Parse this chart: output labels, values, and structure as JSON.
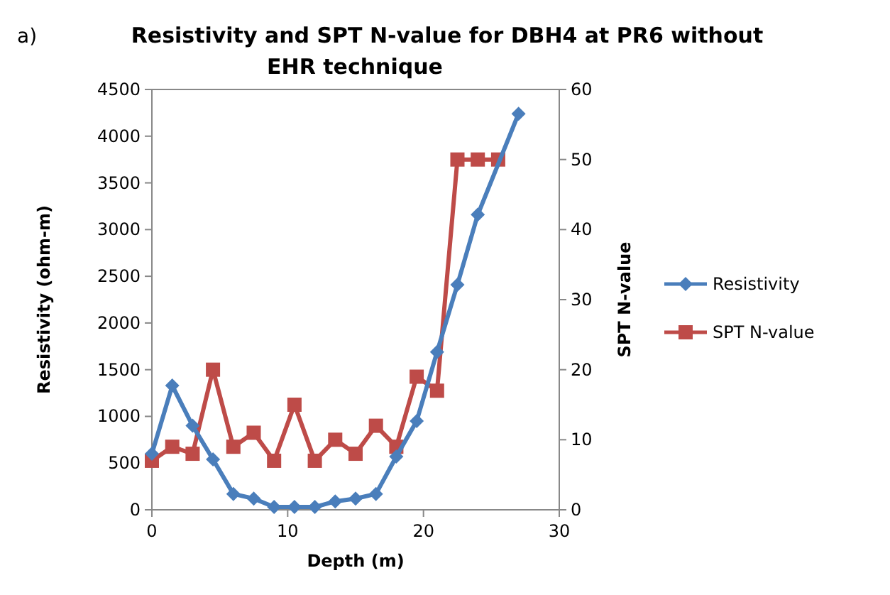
{
  "chart_data": {
    "type": "line",
    "title": "Resistivity and SPT N-value for DBH4 at PR6 without EHR technique",
    "annotations": [
      "a)"
    ],
    "xlabel": "Depth (m)",
    "ylabel": "Resistivity  (ohm-m)",
    "y2label": "SPT N-value",
    "xlim": [
      0,
      30
    ],
    "xticks": [
      0,
      10,
      20,
      30
    ],
    "ylim": [
      0,
      4500
    ],
    "yticks": [
      0,
      500,
      1000,
      1500,
      2000,
      2500,
      3000,
      3500,
      4000,
      4500
    ],
    "y2lim": [
      0,
      60
    ],
    "y2ticks": [
      0,
      10,
      20,
      30,
      40,
      50,
      60
    ],
    "grid": false,
    "legend": "right",
    "line_style": "solid",
    "series": [
      {
        "name": "Resistivity",
        "color": "#4a7ebb",
        "marker": "diamond",
        "x": [
          0,
          1.5,
          3,
          4.5,
          6,
          7.5,
          9,
          10.5,
          12,
          13.5,
          15,
          16.5,
          18,
          19.5,
          21,
          22.5,
          24,
          27
        ],
        "values": [
          600,
          1330,
          900,
          540,
          170,
          120,
          30,
          30,
          30,
          90,
          120,
          170,
          570,
          950,
          1690,
          2410,
          3160,
          4240
        ]
      },
      {
        "name": "SPT N-value",
        "color": "#be4b48",
        "marker": "square",
        "axis": "y2",
        "x": [
          0,
          1.5,
          3,
          4.5,
          6,
          7.5,
          9,
          10.5,
          12,
          13.5,
          15,
          16.5,
          18,
          19.5,
          21,
          22.5,
          24,
          25.5
        ],
        "values": [
          7,
          9,
          8,
          20,
          9,
          11,
          7,
          15,
          7,
          10,
          8,
          12,
          9,
          19,
          17,
          50,
          50,
          50
        ]
      }
    ]
  }
}
